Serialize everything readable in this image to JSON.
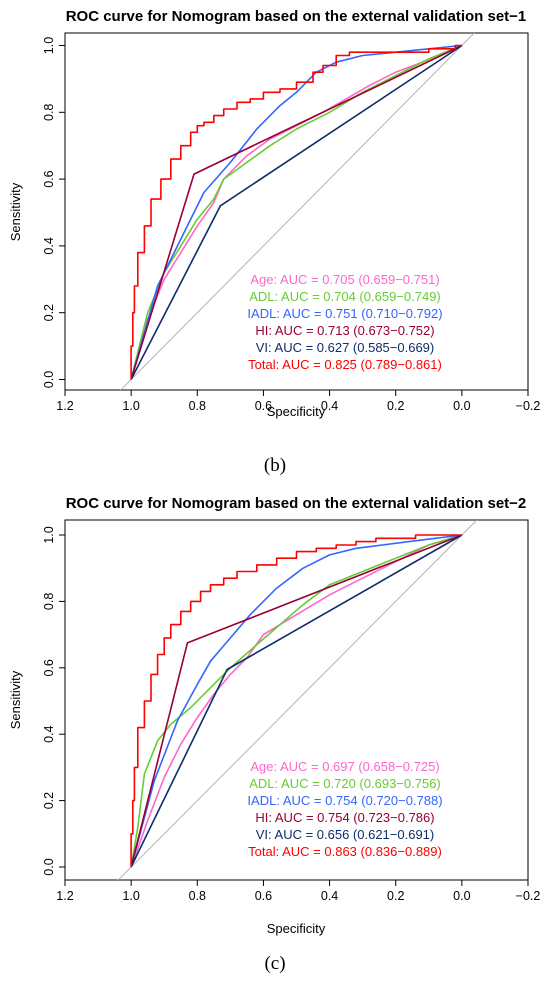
{
  "chart_data": [
    {
      "type": "line",
      "title": "ROC curve for Nomogram based on the external validation set−1",
      "panel_label": "(b)",
      "xlabel": "Specificity",
      "ylabel": "Sensitivity",
      "xlim": [
        1.2,
        -0.2
      ],
      "ylim": [
        0,
        1
      ],
      "x_reversed": true,
      "xticks": [
        "1.2",
        "1.0",
        "0.8",
        "0.6",
        "0.4",
        "0.2",
        "0.0",
        "−0.2"
      ],
      "yticks": [
        "0.0",
        "0.2",
        "0.4",
        "0.6",
        "0.8",
        "1.0"
      ],
      "diagonal_color": "#b3b3b3",
      "legend_position": "bottom-right",
      "series": [
        {
          "name": "Age",
          "legend": "Age: AUC = 0.705 (0.659−0.751)",
          "color": "#ff66cc",
          "x": [
            1.0,
            0.95,
            0.9,
            0.85,
            0.8,
            0.75,
            0.72,
            0.65,
            0.58,
            0.5,
            0.42,
            0.35,
            0.28,
            0.2,
            0.12,
            0.05,
            0.0
          ],
          "y": [
            0.0,
            0.18,
            0.3,
            0.38,
            0.46,
            0.53,
            0.6,
            0.67,
            0.72,
            0.76,
            0.8,
            0.84,
            0.88,
            0.92,
            0.95,
            0.98,
            1.0
          ]
        },
        {
          "name": "ADL",
          "legend": "ADL: AUC = 0.704 (0.659−0.749)",
          "color": "#66cc33",
          "x": [
            1.0,
            0.95,
            0.9,
            0.85,
            0.8,
            0.75,
            0.72,
            0.65,
            0.58,
            0.5,
            0.4,
            0.3,
            0.2,
            0.1,
            0.0
          ],
          "y": [
            0.0,
            0.2,
            0.32,
            0.4,
            0.48,
            0.54,
            0.6,
            0.65,
            0.7,
            0.75,
            0.8,
            0.86,
            0.91,
            0.96,
            1.0
          ]
        },
        {
          "name": "IADL",
          "legend": "IADL: AUC = 0.751 (0.710−0.792)",
          "color": "#3366ff",
          "x": [
            1.0,
            0.92,
            0.84,
            0.78,
            0.7,
            0.62,
            0.55,
            0.5,
            0.44,
            0.38,
            0.3,
            0.2,
            0.1,
            0.0
          ],
          "y": [
            0.0,
            0.28,
            0.44,
            0.56,
            0.65,
            0.75,
            0.82,
            0.86,
            0.92,
            0.95,
            0.97,
            0.98,
            0.99,
            1.0
          ]
        },
        {
          "name": "HI",
          "legend": "HI: AUC = 0.713 (0.673−0.752)",
          "color": "#990033",
          "x": [
            1.0,
            0.81,
            0.0
          ],
          "y": [
            0.0,
            0.615,
            1.0
          ]
        },
        {
          "name": "VI",
          "legend": "VI: AUC = 0.627 (0.585−0.669)",
          "color": "#0d2d6b",
          "x": [
            1.0,
            0.73,
            0.0
          ],
          "y": [
            0.0,
            0.52,
            1.0
          ]
        },
        {
          "name": "Total",
          "legend": "Total: AUC = 0.825 (0.789−0.861)",
          "color": "#ff0000",
          "x": [
            1.0,
            0.995,
            0.99,
            0.98,
            0.96,
            0.94,
            0.91,
            0.88,
            0.85,
            0.82,
            0.8,
            0.78,
            0.75,
            0.72,
            0.68,
            0.64,
            0.6,
            0.55,
            0.5,
            0.45,
            0.42,
            0.38,
            0.34,
            0.3,
            0.2,
            0.1,
            0.02,
            0.0
          ],
          "y": [
            0.0,
            0.1,
            0.2,
            0.28,
            0.38,
            0.46,
            0.54,
            0.6,
            0.66,
            0.7,
            0.74,
            0.76,
            0.77,
            0.79,
            0.81,
            0.83,
            0.84,
            0.86,
            0.87,
            0.89,
            0.92,
            0.94,
            0.97,
            0.98,
            0.98,
            0.98,
            0.99,
            1.0
          ]
        }
      ]
    },
    {
      "type": "line",
      "title": "ROC curve for Nomogram based on the external validation set−2",
      "panel_label": "(c)",
      "xlabel": "Specificity",
      "ylabel": "Sensitivity",
      "xlim": [
        1.2,
        -0.2
      ],
      "ylim": [
        0,
        1
      ],
      "x_reversed": true,
      "xticks": [
        "1.2",
        "1.0",
        "0.8",
        "0.6",
        "0.4",
        "0.2",
        "0.0",
        "−0.2"
      ],
      "yticks": [
        "0.0",
        "0.2",
        "0.4",
        "0.6",
        "0.8",
        "1.0"
      ],
      "diagonal_color": "#b3b3b3",
      "legend_position": "bottom-right",
      "series": [
        {
          "name": "Age",
          "legend": "Age: AUC = 0.697 (0.658−0.725)",
          "color": "#ff66cc",
          "x": [
            1.0,
            0.95,
            0.9,
            0.85,
            0.8,
            0.75,
            0.7,
            0.65,
            0.6,
            0.5,
            0.4,
            0.3,
            0.2,
            0.1,
            0.0
          ],
          "y": [
            0.0,
            0.14,
            0.27,
            0.37,
            0.45,
            0.52,
            0.58,
            0.63,
            0.7,
            0.76,
            0.82,
            0.87,
            0.92,
            0.97,
            1.0
          ]
        },
        {
          "name": "ADL",
          "legend": "ADL: AUC = 0.720 (0.693−0.756)",
          "color": "#66cc33",
          "x": [
            1.0,
            0.98,
            0.96,
            0.92,
            0.88,
            0.82,
            0.76,
            0.7,
            0.62,
            0.55,
            0.48,
            0.4,
            0.3,
            0.2,
            0.1,
            0.0
          ],
          "y": [
            0.0,
            0.12,
            0.28,
            0.38,
            0.43,
            0.48,
            0.54,
            0.6,
            0.67,
            0.73,
            0.79,
            0.85,
            0.89,
            0.93,
            0.97,
            1.0
          ]
        },
        {
          "name": "IADL",
          "legend": "IADL: AUC = 0.754 (0.720−0.788)",
          "color": "#3366ff",
          "x": [
            1.0,
            0.93,
            0.86,
            0.8,
            0.76,
            0.7,
            0.64,
            0.56,
            0.48,
            0.4,
            0.32,
            0.24,
            0.16,
            0.08,
            0.0
          ],
          "y": [
            0.0,
            0.26,
            0.44,
            0.55,
            0.62,
            0.69,
            0.76,
            0.84,
            0.9,
            0.94,
            0.96,
            0.97,
            0.98,
            0.99,
            1.0
          ]
        },
        {
          "name": "HI",
          "legend": "HI: AUC = 0.754 (0.723−0.786)",
          "color": "#990033",
          "x": [
            1.0,
            0.83,
            0.0
          ],
          "y": [
            0.0,
            0.675,
            1.0
          ]
        },
        {
          "name": "VI",
          "legend": "VI: AUC = 0.656 (0.621−0.691)",
          "color": "#0d2d6b",
          "x": [
            1.0,
            0.71,
            0.0
          ],
          "y": [
            0.0,
            0.595,
            1.0
          ]
        },
        {
          "name": "Total",
          "legend": "Total: AUC = 0.863 (0.836−0.889)",
          "color": "#ff0000",
          "x": [
            1.0,
            0.995,
            0.99,
            0.98,
            0.96,
            0.94,
            0.92,
            0.9,
            0.88,
            0.85,
            0.82,
            0.79,
            0.76,
            0.72,
            0.68,
            0.62,
            0.56,
            0.5,
            0.44,
            0.38,
            0.32,
            0.26,
            0.2,
            0.14,
            0.08,
            0.02,
            0.0
          ],
          "y": [
            0.0,
            0.1,
            0.2,
            0.3,
            0.42,
            0.5,
            0.58,
            0.64,
            0.69,
            0.73,
            0.77,
            0.8,
            0.83,
            0.85,
            0.87,
            0.89,
            0.91,
            0.93,
            0.95,
            0.96,
            0.97,
            0.98,
            0.99,
            0.99,
            1.0,
            1.0,
            1.0
          ]
        }
      ]
    }
  ]
}
